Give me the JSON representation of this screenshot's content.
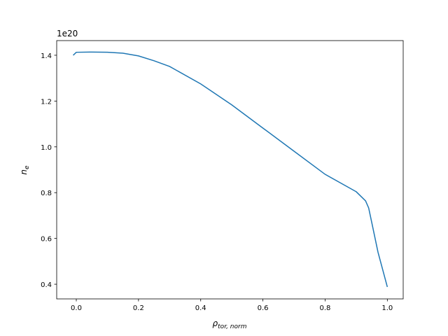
{
  "chart_data": {
    "type": "line",
    "xlabel": {
      "symbol": "ρ",
      "subscript": "tor, norm"
    },
    "ylabel": {
      "symbol": "n",
      "subscript": "e"
    },
    "y_offset_label": "1e20",
    "x": [
      -0.01,
      0.0,
      0.05,
      0.1,
      0.15,
      0.2,
      0.25,
      0.3,
      0.4,
      0.5,
      0.6,
      0.7,
      0.8,
      0.9,
      0.93,
      0.94,
      0.95,
      0.97,
      1.0
    ],
    "series": [
      {
        "color": "#1f77b4",
        "values": [
          1.4,
          1.413,
          1.414,
          1.413,
          1.409,
          1.397,
          1.376,
          1.351,
          1.275,
          1.183,
          1.082,
          0.981,
          0.88,
          0.804,
          0.764,
          0.733,
          0.669,
          0.54,
          0.388
        ]
      }
    ],
    "xlim": [
      -0.063,
      1.051
    ],
    "ylim": [
      0.336,
      1.464
    ],
    "xticks": [
      {
        "value": 0.0,
        "label": "0.0"
      },
      0.2,
      0.4,
      0.6,
      0.8,
      {
        "value": 1.0,
        "label": "1.0"
      }
    ],
    "yticks": [
      0.4,
      0.6,
      0.8,
      {
        "value": 1.0,
        "label": "1.0"
      },
      1.2,
      1.4
    ]
  }
}
